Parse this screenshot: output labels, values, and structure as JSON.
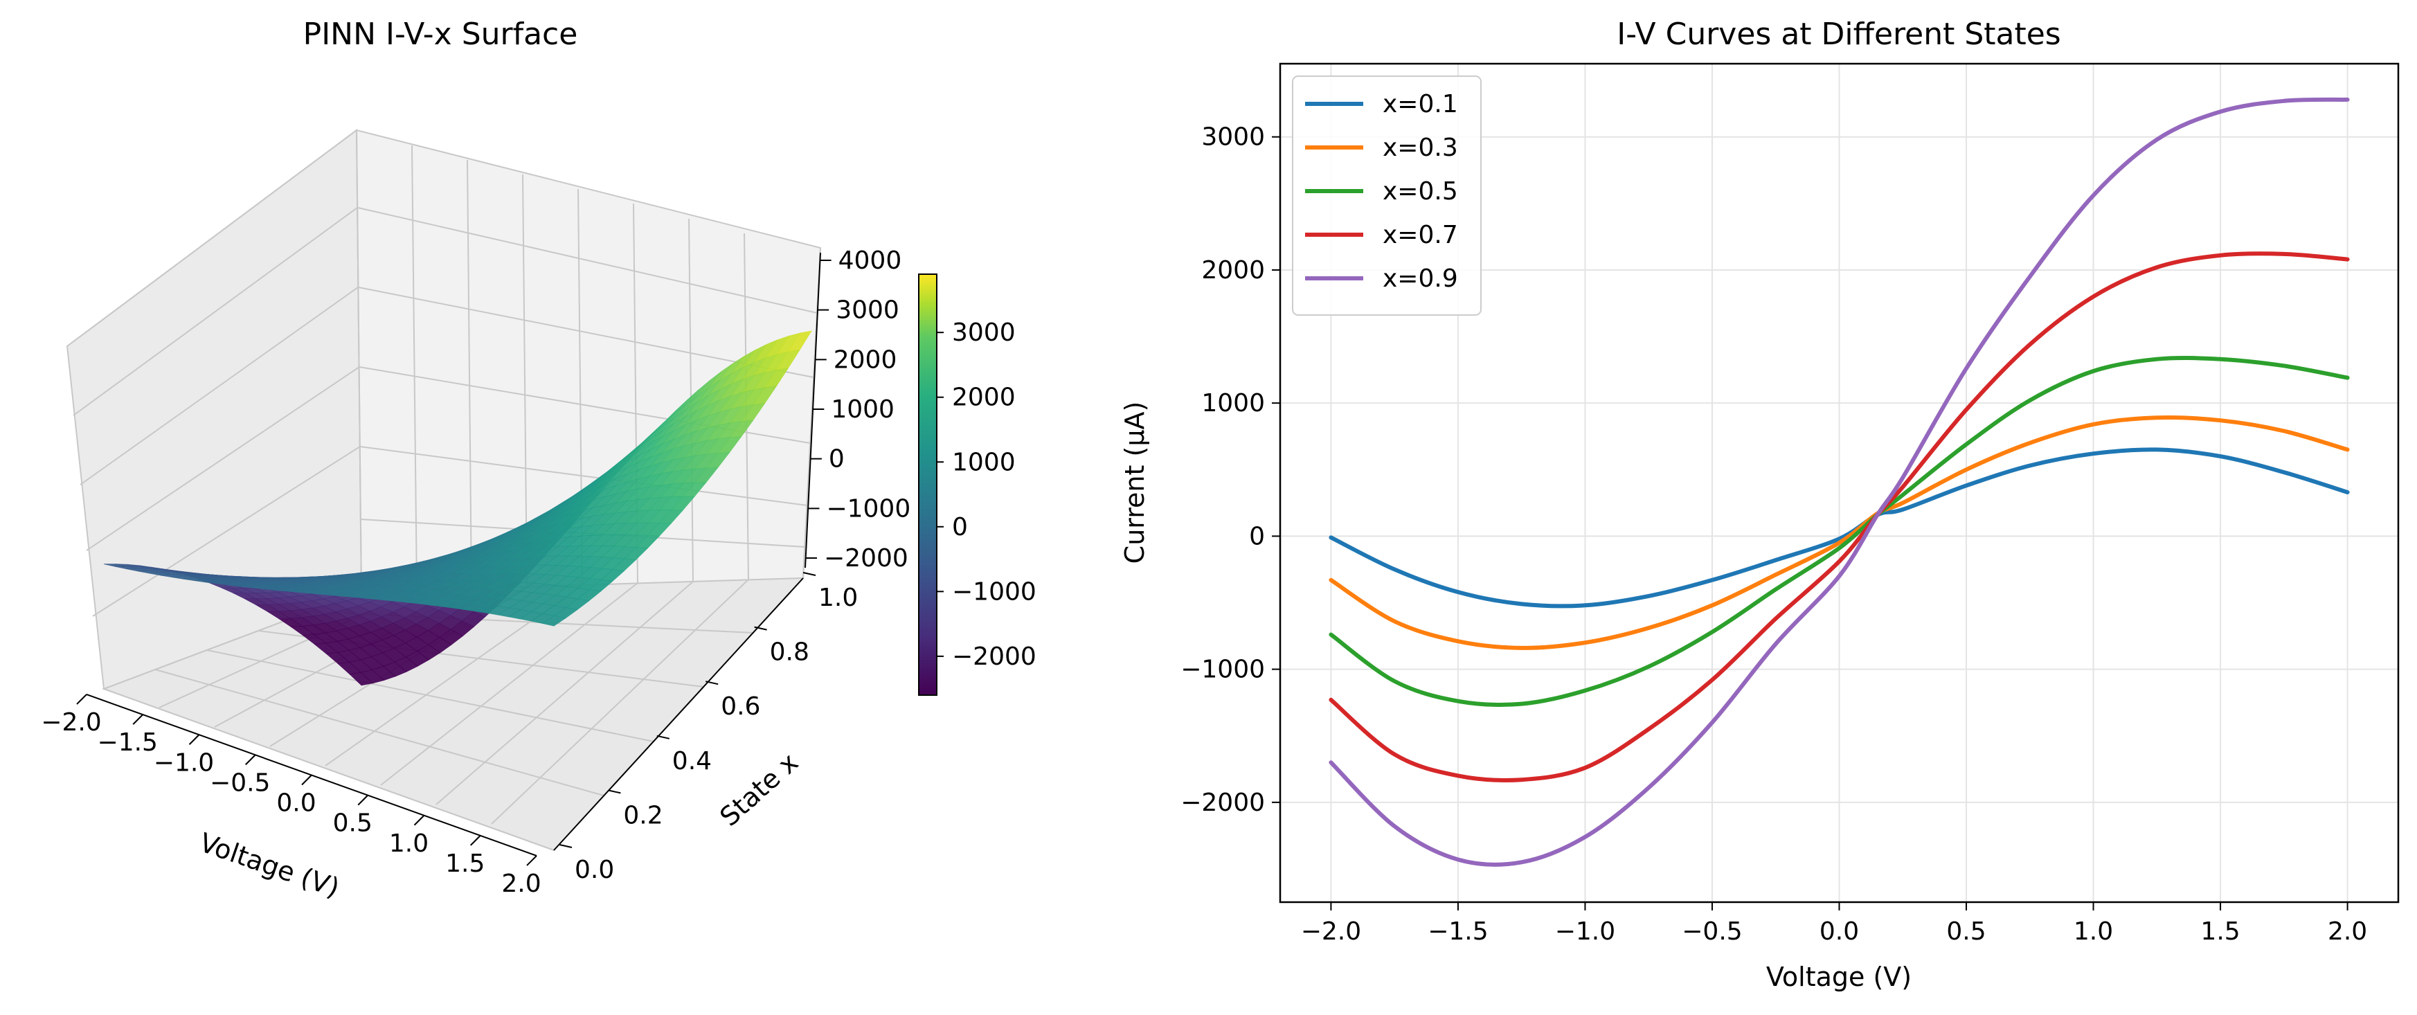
{
  "surface_panel": {
    "title": "PINN I-V-x Surface",
    "xlabel": "Voltage (V)",
    "ylabel": "State x",
    "x_ticks": [
      "−2.0",
      "−1.5",
      "−1.0",
      "−0.5",
      "0.0",
      "0.5",
      "1.0",
      "1.5",
      "2.0"
    ],
    "y_ticks": [
      "0.0",
      "0.2",
      "0.4",
      "0.6",
      "0.8",
      "1.0"
    ],
    "z_ticks": [
      "−2000",
      "−1000",
      "0",
      "1000",
      "2000",
      "3000",
      "4000"
    ],
    "colorbar_ticks": [
      "−2000",
      "−1000",
      "0",
      "1000",
      "2000",
      "3000"
    ],
    "colormap": "viridis",
    "pane_color": "#f2f2f2",
    "grid_color": "#c8c8c8"
  },
  "chart_data": [
    {
      "type": "surface",
      "title": "PINN I-V-x Surface",
      "xlabel": "Voltage (V)",
      "ylabel": "State x",
      "xlim": [
        -2.0,
        2.0
      ],
      "ylim": [
        0.0,
        1.0
      ],
      "zlim": [
        -2600,
        4000
      ],
      "clim": [
        -2600,
        3900
      ]
    },
    {
      "type": "line",
      "title": "I-V Curves at Different States",
      "xlabel": "Voltage (V)",
      "ylabel": "Current (μA)",
      "xlim": [
        -2.2,
        2.2
      ],
      "ylim": [
        -2750,
        3550
      ],
      "grid": true,
      "legend": "top-left",
      "x": [
        -2.0,
        -1.75,
        -1.5,
        -1.25,
        -1.0,
        -0.75,
        -0.5,
        -0.25,
        0.0,
        0.15,
        0.25,
        0.5,
        0.75,
        1.0,
        1.25,
        1.5,
        1.75,
        2.0
      ],
      "x_ticks": [
        "−2.0",
        "−1.5",
        "−1.0",
        "−0.5",
        "0.0",
        "0.5",
        "1.0",
        "1.5",
        "2.0"
      ],
      "x_tick_values": [
        -2.0,
        -1.5,
        -1.0,
        -0.5,
        0.0,
        0.5,
        1.0,
        1.5,
        2.0
      ],
      "y_ticks": [
        "−2000",
        "−1000",
        "0",
        "1000",
        "2000",
        "3000"
      ],
      "y_tick_values": [
        -2000,
        -1000,
        0,
        1000,
        2000,
        3000
      ],
      "series": [
        {
          "name": "x=0.1",
          "color": "#1f77b4",
          "values": [
            -10,
            -250,
            -420,
            -510,
            -520,
            -450,
            -330,
            -180,
            -20,
            160,
            200,
            380,
            530,
            620,
            650,
            600,
            480,
            330
          ]
        },
        {
          "name": "x=0.3",
          "color": "#ff7f0e",
          "values": [
            -330,
            -640,
            -790,
            -840,
            -800,
            -690,
            -520,
            -290,
            -50,
            170,
            250,
            500,
            700,
            840,
            890,
            870,
            790,
            650
          ]
        },
        {
          "name": "x=0.5",
          "color": "#2ca02c",
          "values": [
            -740,
            -1090,
            -1240,
            -1260,
            -1160,
            -980,
            -720,
            -400,
            -90,
            160,
            310,
            690,
            1020,
            1240,
            1330,
            1330,
            1280,
            1190
          ]
        },
        {
          "name": "x=0.7",
          "color": "#d62728",
          "values": [
            -1230,
            -1640,
            -1800,
            -1830,
            -1740,
            -1450,
            -1080,
            -620,
            -190,
            160,
            370,
            950,
            1440,
            1800,
            2020,
            2110,
            2120,
            2080
          ]
        },
        {
          "name": "x=0.9",
          "color": "#9467bd",
          "values": [
            -1700,
            -2180,
            -2430,
            -2450,
            -2260,
            -1890,
            -1400,
            -810,
            -300,
            160,
            440,
            1260,
            1950,
            2560,
            2980,
            3190,
            3270,
            3280
          ]
        }
      ]
    }
  ]
}
